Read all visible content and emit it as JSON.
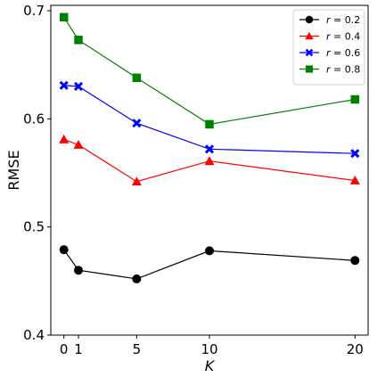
{
  "chart_data": {
    "type": "line",
    "x": [
      0,
      1,
      5,
      10,
      20
    ],
    "xlabel": "K",
    "ylabel": "RMSE",
    "xlim": [
      -0.9,
      20.9
    ],
    "ylim": [
      0.4,
      0.705
    ],
    "xticks": [
      0,
      1,
      5,
      10,
      20
    ],
    "yticks": [
      0.4,
      0.5,
      0.6,
      0.7
    ],
    "ytick_labels": [
      "0.4",
      "0.5",
      "0.6",
      "0.7"
    ],
    "grid": false,
    "legend_position": "top-right",
    "series": [
      {
        "name": "r = 0.2",
        "legend_var": "r",
        "legend_value": " = 0.2",
        "color": "#000000",
        "marker": "circle",
        "values": [
          0.479,
          0.46,
          0.452,
          0.478,
          0.469
        ]
      },
      {
        "name": "r = 0.4",
        "legend_var": "r",
        "legend_value": " = 0.4",
        "color": "#ff0000",
        "marker": "triangle",
        "values": [
          0.581,
          0.576,
          0.542,
          0.561,
          0.543
        ]
      },
      {
        "name": "r = 0.6",
        "legend_var": "r",
        "legend_value": " = 0.6",
        "color": "#0000ff",
        "marker": "x",
        "values": [
          0.631,
          0.63,
          0.596,
          0.572,
          0.568
        ]
      },
      {
        "name": "r = 0.8",
        "legend_var": "r",
        "legend_value": " = 0.8",
        "color": "#008000",
        "marker": "square",
        "values": [
          0.694,
          0.673,
          0.638,
          0.595,
          0.618
        ]
      }
    ]
  }
}
